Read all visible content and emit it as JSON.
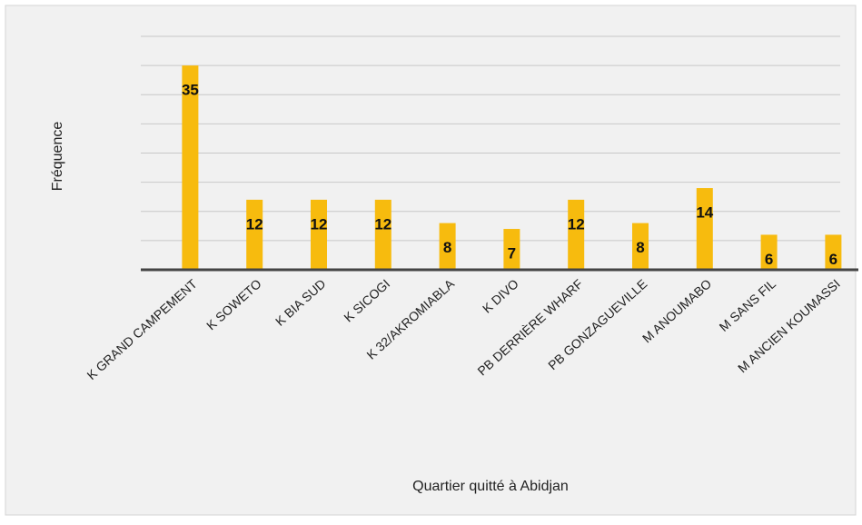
{
  "chart_data": {
    "type": "bar",
    "x_label": "Quartier quitté  à Abidjan",
    "y_label": "Fréquence",
    "categories": [
      "K GRAND CAMPEMENT",
      "K SOWETO",
      "K BIA SUD",
      "K SICOGI",
      "K 32/AKROMIABLA",
      "K DIVO",
      "PB DERRIÈRE WHARF",
      "PB GONZAGUEVILLE",
      "M ANOUMABO",
      "M SANS FIL",
      "M ANCIEN KOUMASSI"
    ],
    "values": [
      35,
      12,
      12,
      12,
      8,
      7,
      12,
      8,
      14,
      6,
      6
    ],
    "color": "#f7bb0e",
    "ylim": [
      0,
      40
    ],
    "yticks": [
      0,
      5,
      10,
      15,
      20,
      25,
      30,
      35,
      40
    ],
    "show_ytick_labels": false,
    "grid": true
  }
}
